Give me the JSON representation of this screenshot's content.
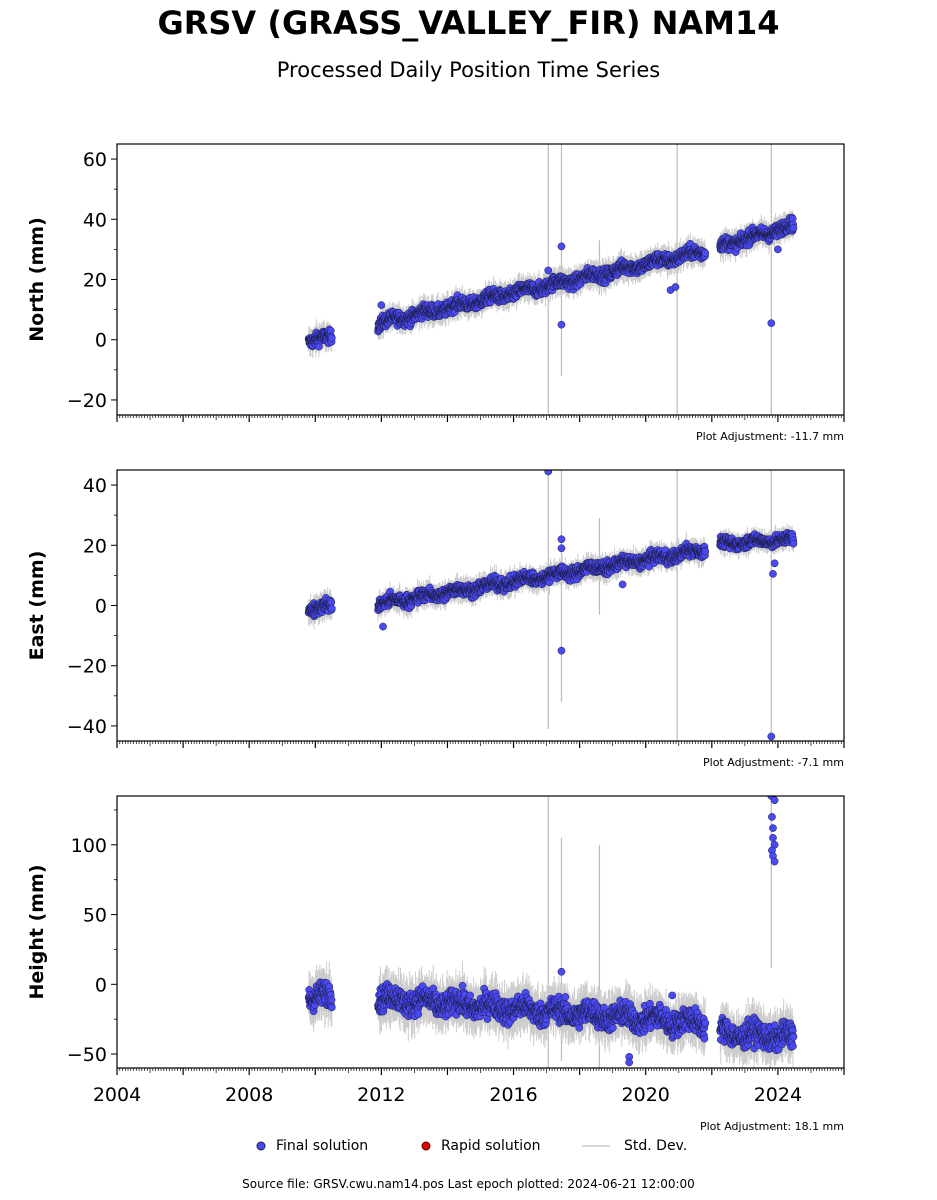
{
  "title": "GRSV (GRASS_VALLEY_FIR) NAM14",
  "subtitle": "Processed Daily Position Time Series",
  "legend": {
    "final": "Final solution",
    "rapid": "Rapid solution",
    "std": "Std. Dev."
  },
  "footer": "Source file: GRSV.cwu.nam14.pos  Last epoch plotted: 2024-06-21 12:00:00",
  "colors": {
    "final": "#4a4af5",
    "rapid": "#e00000",
    "std": "#cccccc",
    "edge": "#1a1a40"
  },
  "chart_data": [
    {
      "type": "scatter",
      "ylabel": "North (mm)",
      "adjustment": "Plot Adjustment: -11.7 mm",
      "xlim": [
        2004,
        2026
      ],
      "ylim": [
        -25,
        65
      ],
      "yticks": [
        -20,
        0,
        20,
        40,
        60
      ],
      "xticks": [],
      "grid": false,
      "segments": [
        {
          "x0": 2009.8,
          "y0": 0.0,
          "x1": 2010.5,
          "y1": 0.5,
          "noise": 1.5
        },
        {
          "x0": 2011.9,
          "y0": 5.5,
          "x1": 2021.8,
          "y1": 29.5,
          "noise": 1.5
        },
        {
          "x0": 2022.25,
          "y0": 31.0,
          "x1": 2024.47,
          "y1": 38.0,
          "noise": 1.5
        }
      ],
      "outliers": [
        [
          2012.0,
          11.5
        ],
        [
          2017.45,
          31.0
        ],
        [
          2017.45,
          5.0
        ],
        [
          2017.05,
          23.0
        ],
        [
          2020.75,
          16.5
        ],
        [
          2020.9,
          17.5
        ],
        [
          2023.8,
          5.5
        ],
        [
          2024.0,
          30.0
        ]
      ],
      "std_spikes": [
        [
          2017.05,
          -25,
          65
        ],
        [
          2017.45,
          -12,
          65
        ],
        [
          2018.6,
          15,
          33
        ],
        [
          2020.95,
          -25,
          65
        ],
        [
          2023.8,
          -25,
          65
        ]
      ]
    },
    {
      "type": "scatter",
      "ylabel": "East (mm)",
      "adjustment": "Plot Adjustment: -7.1 mm",
      "xlim": [
        2004,
        2026
      ],
      "ylim": [
        -45,
        45
      ],
      "yticks": [
        -40,
        -20,
        0,
        20,
        40
      ],
      "xticks": [],
      "grid": false,
      "segments": [
        {
          "x0": 2009.8,
          "y0": -1.0,
          "x1": 2010.5,
          "y1": -0.5,
          "noise": 1.5
        },
        {
          "x0": 2011.9,
          "y0": 0.5,
          "x1": 2021.8,
          "y1": 18.5,
          "noise": 1.4
        },
        {
          "x0": 2022.25,
          "y0": 20.5,
          "x1": 2024.47,
          "y1": 22.0,
          "noise": 1.2
        }
      ],
      "outliers": [
        [
          2012.05,
          -7.0
        ],
        [
          2017.05,
          44.5
        ],
        [
          2017.45,
          22.0
        ],
        [
          2017.45,
          19.0
        ],
        [
          2017.45,
          -15.0
        ],
        [
          2019.3,
          7.0
        ],
        [
          2023.8,
          -43.5
        ],
        [
          2023.85,
          10.5
        ],
        [
          2023.9,
          14.0
        ]
      ],
      "std_spikes": [
        [
          2017.05,
          -41,
          45
        ],
        [
          2017.45,
          -32,
          45
        ],
        [
          2018.6,
          -3,
          29
        ],
        [
          2020.95,
          -45,
          45
        ],
        [
          2023.8,
          -45,
          45
        ]
      ]
    },
    {
      "type": "scatter",
      "ylabel": "Height (mm)",
      "adjustment": "Plot Adjustment: 18.1 mm",
      "xlim": [
        2004,
        2026
      ],
      "ylim": [
        -60,
        135
      ],
      "yticks": [
        -50,
        0,
        50,
        100
      ],
      "xticks": [
        2004,
        2008,
        2012,
        2016,
        2020,
        2024
      ],
      "grid": false,
      "segments": [
        {
          "x0": 2009.8,
          "y0": -8.0,
          "x1": 2010.5,
          "y1": -9.0,
          "noise": 6.0
        },
        {
          "x0": 2011.9,
          "y0": -10.0,
          "x1": 2021.8,
          "y1": -28.0,
          "noise": 6.0
        },
        {
          "x0": 2022.25,
          "y0": -35.0,
          "x1": 2024.47,
          "y1": -38.0,
          "noise": 6.0
        }
      ],
      "outliers": [
        [
          2023.8,
          135
        ],
        [
          2023.9,
          132
        ],
        [
          2023.82,
          120
        ],
        [
          2023.85,
          112
        ],
        [
          2023.85,
          105
        ],
        [
          2023.9,
          100
        ],
        [
          2023.82,
          96
        ],
        [
          2023.85,
          92
        ],
        [
          2023.9,
          88
        ],
        [
          2017.45,
          9.0
        ],
        [
          2019.5,
          -52
        ],
        [
          2019.5,
          -56
        ],
        [
          2020.8,
          -8.0
        ]
      ],
      "std_spikes": [
        [
          2017.05,
          -60,
          135
        ],
        [
          2017.45,
          -55,
          105
        ],
        [
          2018.6,
          -60,
          100
        ],
        [
          2023.8,
          12,
          135
        ]
      ]
    }
  ]
}
